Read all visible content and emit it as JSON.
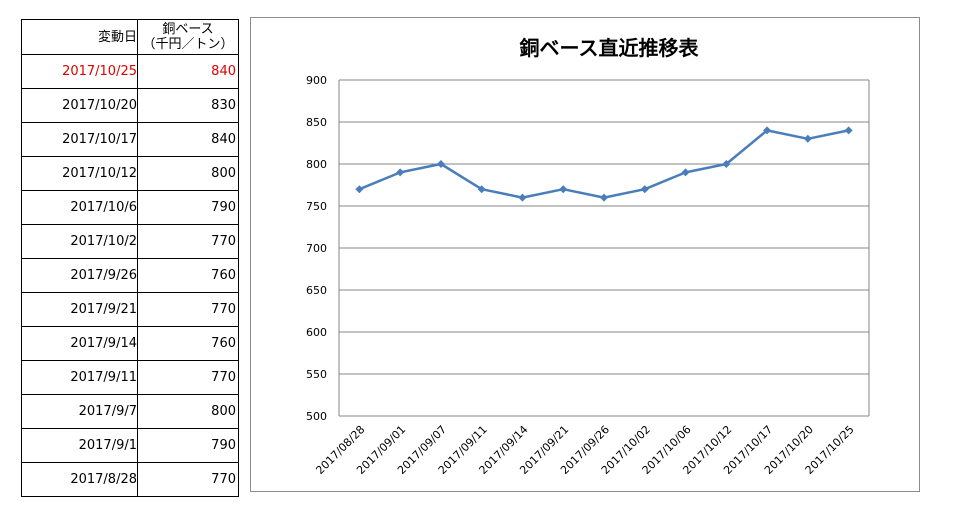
{
  "table": {
    "headers": {
      "date": "変動日",
      "price_line1": "銅ベース",
      "price_line2": "（千円／トン）"
    },
    "rows": [
      {
        "date": "2017/10/25",
        "price": "840",
        "highlight": true
      },
      {
        "date": "2017/10/20",
        "price": "830"
      },
      {
        "date": "2017/10/17",
        "price": "840"
      },
      {
        "date": "2017/10/12",
        "price": "800"
      },
      {
        "date": "2017/10/6",
        "price": "790"
      },
      {
        "date": "2017/10/2",
        "price": "770"
      },
      {
        "date": "2017/9/26",
        "price": "760"
      },
      {
        "date": "2017/9/21",
        "price": "770"
      },
      {
        "date": "2017/9/14",
        "price": "760"
      },
      {
        "date": "2017/9/11",
        "price": "770"
      },
      {
        "date": "2017/9/7",
        "price": "800"
      },
      {
        "date": "2017/9/1",
        "price": "790"
      },
      {
        "date": "2017/8/28",
        "price": "770"
      }
    ],
    "highlight_color": "#e00000"
  },
  "chart_data": {
    "type": "line",
    "title": "銅ベース直近推移表",
    "categories": [
      "2017/08/28",
      "2017/09/01",
      "2017/09/07",
      "2017/09/11",
      "2017/09/14",
      "2017/09/21",
      "2017/09/26",
      "2017/10/02",
      "2017/10/06",
      "2017/10/12",
      "2017/10/17",
      "2017/10/20",
      "2017/10/25"
    ],
    "series": [
      {
        "values": [
          770,
          790,
          800,
          770,
          760,
          770,
          760,
          770,
          790,
          800,
          840,
          830,
          840
        ],
        "color": "#4a7ebb"
      }
    ],
    "ylim": [
      500,
      900
    ],
    "yticks": [
      500,
      550,
      600,
      650,
      700,
      750,
      800,
      850,
      900
    ],
    "grid": true,
    "marker": "diamond"
  }
}
